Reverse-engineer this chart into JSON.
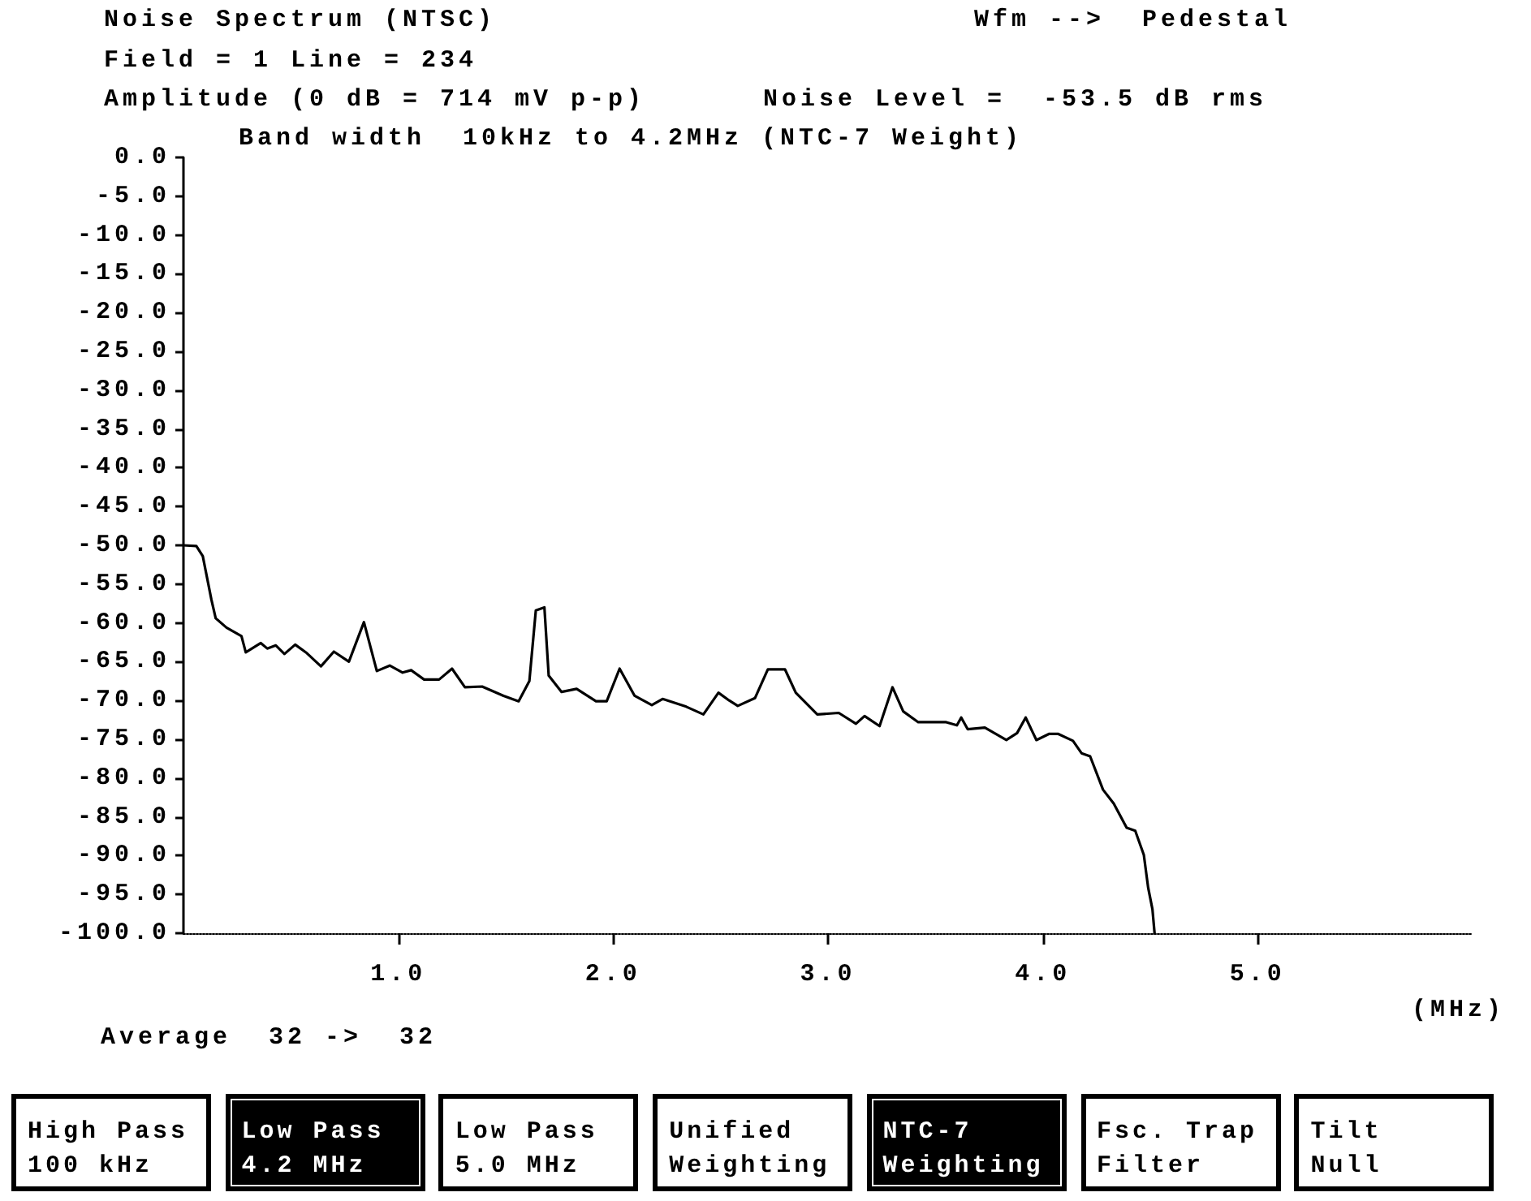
{
  "chart_data": {
    "type": "line",
    "title": "Noise Spectrum (NTSC)",
    "subtitle": "Field = 1 Line = 234",
    "ylabel": "Amplitude (0 dB = 714 mV p-p)",
    "xlabel": "(MHz)",
    "annotations": [
      "Wfm -->  Pedestal",
      "Noise Level =  -53.5 dB rms",
      "Band width  10kHz to 4.2MHz (NTC-7 Weight)",
      "Average  32 ->  32",
      "High Pass\n100 kHz",
      "Low Pass\n4.2 MHz",
      "Low Pass\n5.0 MHz",
      "Unified\nWeighting",
      "NTC-7\nWeighting",
      "Fsc. Trap\nFilter",
      "Tilt\nNull"
    ],
    "x": [
      0,
      0.06,
      0.09,
      0.11,
      0.13,
      0.15,
      0.2,
      0.27,
      0.29,
      0.36,
      0.39,
      0.43,
      0.47,
      0.52,
      0.57,
      0.64,
      0.7,
      0.77,
      0.84,
      0.9,
      0.96,
      1.02,
      1.06,
      1.12,
      1.19,
      1.25,
      1.31,
      1.39,
      1.49,
      1.56,
      1.61,
      1.64,
      1.68,
      1.7,
      1.76,
      1.83,
      1.92,
      1.97,
      2.03,
      2.1,
      2.18,
      2.23,
      2.34,
      2.42,
      2.49,
      2.54,
      2.58,
      2.66,
      2.72,
      2.8,
      2.85,
      2.95,
      3.05,
      3.13,
      3.17,
      3.24,
      3.3,
      3.35,
      3.42,
      3.55,
      3.6,
      3.62,
      3.65,
      3.73,
      3.83,
      3.88,
      3.92,
      3.97,
      4.03,
      4.07,
      4.14,
      4.18,
      4.22,
      4.28,
      4.33,
      4.39,
      4.43,
      4.47,
      4.49,
      4.51,
      4.52
    ],
    "values": [
      -50,
      -50.1,
      -51.4,
      -54.2,
      -57,
      -59.4,
      -60.6,
      -61.7,
      -63.8,
      -62.6,
      -63.3,
      -62.9,
      -64,
      -62.8,
      -63.8,
      -65.6,
      -63.7,
      -65,
      -59.9,
      -66.2,
      -65.5,
      -66.4,
      -66.1,
      -67.3,
      -67.3,
      -65.9,
      -68.3,
      -68.2,
      -69.4,
      -70.1,
      -67.5,
      -58.4,
      -58,
      -66.8,
      -68.9,
      -68.5,
      -70.1,
      -70.1,
      -65.9,
      -69.4,
      -70.6,
      -69.8,
      -70.8,
      -71.8,
      -69,
      -70,
      -70.7,
      -69.7,
      -66,
      -66,
      -69,
      -71.8,
      -71.6,
      -73,
      -72,
      -73.3,
      -68.3,
      -71.4,
      -72.8,
      -72.8,
      -73.2,
      -72.2,
      -73.7,
      -73.5,
      -75.1,
      -74.2,
      -72.2,
      -75.1,
      -74.3,
      -74.3,
      -75.2,
      -76.8,
      -77.2,
      -81.5,
      -83.3,
      -86.4,
      -86.8,
      -89.9,
      -94.1,
      -96.9,
      -100
    ],
    "color": "#000000",
    "marker": "none",
    "xlim": [
      0,
      6
    ],
    "xticks": [
      {
        "value": 1,
        "label": "1.0"
      },
      {
        "value": 2,
        "label": "2.0"
      },
      {
        "value": 3,
        "label": "3.0"
      },
      {
        "value": 4,
        "label": "4.0"
      },
      {
        "value": 5,
        "label": "5.0"
      }
    ],
    "ylim": [
      -100,
      0
    ],
    "yticks": [
      {
        "value": 0,
        "label": "0.0"
      },
      {
        "value": -5,
        "label": "-5.0"
      },
      {
        "value": -10,
        "label": "-10.0"
      },
      {
        "value": -15,
        "label": "-15.0"
      },
      {
        "value": -20,
        "label": "-20.0"
      },
      {
        "value": -25,
        "label": "-25.0"
      },
      {
        "value": -30,
        "label": "-30.0"
      },
      {
        "value": -35,
        "label": "-35.0"
      },
      {
        "value": -40,
        "label": "-40.0"
      },
      {
        "value": -45,
        "label": "-45.0"
      },
      {
        "value": -50,
        "label": "-50.0"
      },
      {
        "value": -55,
        "label": "-55.0"
      },
      {
        "value": -60,
        "label": "-60.0"
      },
      {
        "value": -65,
        "label": "-65.0"
      },
      {
        "value": -70,
        "label": "-70.0"
      },
      {
        "value": -75,
        "label": "-75.0"
      },
      {
        "value": -80,
        "label": "-80.0"
      },
      {
        "value": -85,
        "label": "-85.0"
      },
      {
        "value": -90,
        "label": "-90.0"
      },
      {
        "value": -95,
        "label": "-95.0"
      },
      {
        "value": -100,
        "label": "-100.0"
      }
    ]
  }
}
